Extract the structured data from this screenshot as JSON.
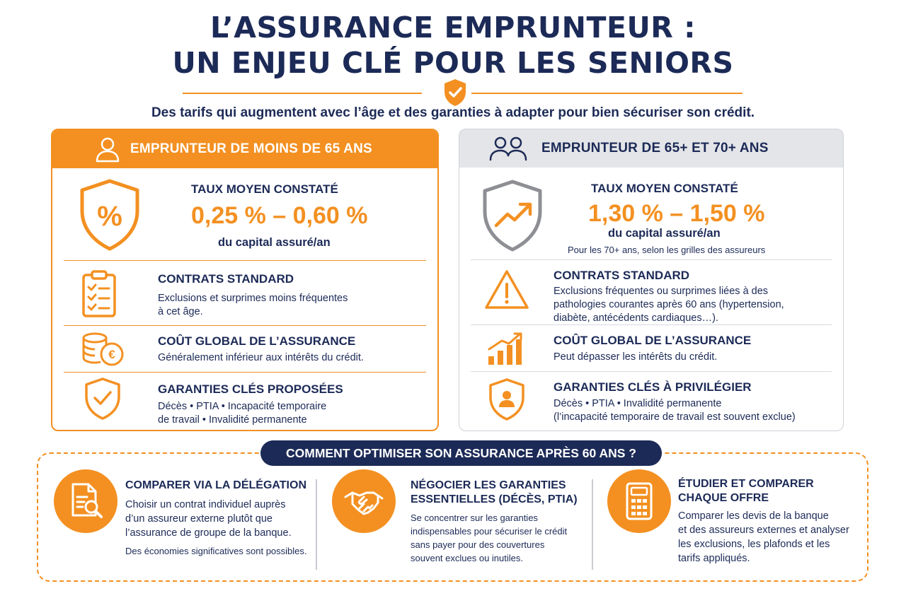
{
  "header": {
    "title_line1": "L’ASSURANCE EMPRUNTEUR :",
    "title_line2": "UN ENJEU CLÉ POUR LES SENIORS",
    "subtitle": "Des tarifs qui augmentent avec l’âge et des garanties à adapter pour bien sécuriser son crédit."
  },
  "colors": {
    "accent": "#f39021",
    "navy": "#1c2a57",
    "grey_panel": "#e4e5e8"
  },
  "left_panel": {
    "header": "EMPRUNTEUR DE MOINS DE 65 ANS",
    "header_icon": "user-icon",
    "rate": {
      "icon": "shield-percent-icon",
      "title": "TAUX MOYEN CONSTATÉ",
      "value": "0,25 % – 0,60 %",
      "unit": "du capital assuré/an"
    },
    "contracts": {
      "icon": "clipboard-checklist-icon",
      "title": "CONTRATS STANDARD",
      "text_line1": "Exclusions et surprimes moins fréquentes",
      "text_line2": "à cet âge."
    },
    "cost": {
      "icon": "coins-euro-icon",
      "title": "COÛT GLOBAL DE L’ASSURANCE",
      "text": "Généralement inférieur aux intérêts du crédit."
    },
    "guarantees": {
      "icon": "shield-check-icon",
      "title": "GARANTIES CLÉS PROPOSÉES",
      "text_line1": "Décès • PTIA • Incapacité temporaire",
      "text_line2": "de travail • Invalidité permanente"
    }
  },
  "right_panel": {
    "header": "EMPRUNTEUR DE 65+ ET 70+ ANS",
    "header_icon": "users-icon",
    "rate": {
      "icon": "shield-trend-up-icon",
      "title": "TAUX MOYEN CONSTATÉ",
      "value": "1,30 % – 1,50 %",
      "unit": "du capital assuré/an",
      "note": "Pour les 70+ ans, selon les grilles des assureurs"
    },
    "contracts": {
      "icon": "warning-icon",
      "title": "CONTRATS STANDARD",
      "text_line1": "Exclusions fréquentes ou surprimes liées à des",
      "text_line2": "pathologies courantes après 60 ans (hypertension,",
      "text_line3": "diabète, antécédents cardiaques…)."
    },
    "cost": {
      "icon": "bar-chart-up-icon",
      "title": "COÛT GLOBAL DE L’ASSURANCE",
      "text": "Peut dépasser les intérêts du crédit."
    },
    "guarantees": {
      "icon": "shield-person-icon",
      "title": "GARANTIES CLÉS À PRIVILÉGIER",
      "text_line1": "Décès • PTIA • Invalidité permanente",
      "text_line2": "(l’incapacité temporaire de travail est souvent exclue)"
    }
  },
  "optimize": {
    "heading": "COMMENT OPTIMISER SON ASSURANCE APRÈS 60 ANS ?",
    "items": [
      {
        "icon": "document-search-icon",
        "title": "COMPARER VIA LA DÉLÉGATION",
        "text_line1": "Choisir un contrat individuel auprès",
        "text_line2": "d’un assureur externe plutôt que",
        "text_line3": "l’assurance de groupe de la banque.",
        "note": "Des économies significatives sont possibles."
      },
      {
        "icon": "handshake-icon",
        "title_line1": "NÉGOCIER LES GARANTIES",
        "title_line2": "ESSENTIELLES (DÉCÈS, PTIA)",
        "text_line1": "Se concentrer sur les garanties",
        "text_line2": "indispensables pour sécuriser le crédit",
        "text_line3": "sans payer pour des couvertures",
        "text_line4": "souvent exclues ou inutiles."
      },
      {
        "icon": "calculator-icon",
        "title_line1": "ÉTUDIER ET COMPARER",
        "title_line2": "CHAQUE OFFRE",
        "text_line1": "Comparer les devis de la banque",
        "text_line2": "et des assureurs externes et analyser",
        "text_line3": "les exclusions, les plafonds et les",
        "text_line4": "tarifs appliqués."
      }
    ]
  }
}
